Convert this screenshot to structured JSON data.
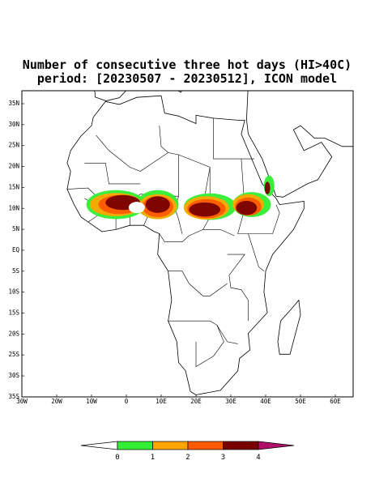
{
  "map": {
    "title": "Number of consecutive three hot days (HI>40C)",
    "subtitle": "period: [20230507 - 20230512], ICON model",
    "lat_labels": [
      "35N",
      "30N",
      "25N",
      "20N",
      "15N",
      "10N",
      "5N",
      "EQ",
      "5S",
      "10S",
      "15S",
      "20S",
      "25S",
      "30S",
      "35S"
    ],
    "lon_labels": [
      "30W",
      "20W",
      "10W",
      "0",
      "10E",
      "20E",
      "30E",
      "40E",
      "50E",
      "60E"
    ],
    "colorbar": {
      "labels": [
        0,
        1,
        2,
        3,
        4
      ],
      "colors": [
        "#ffffff",
        "#33ee33",
        "#ffa500",
        "#ff5a00",
        "#780000",
        "#b0106a"
      ]
    }
  }
}
